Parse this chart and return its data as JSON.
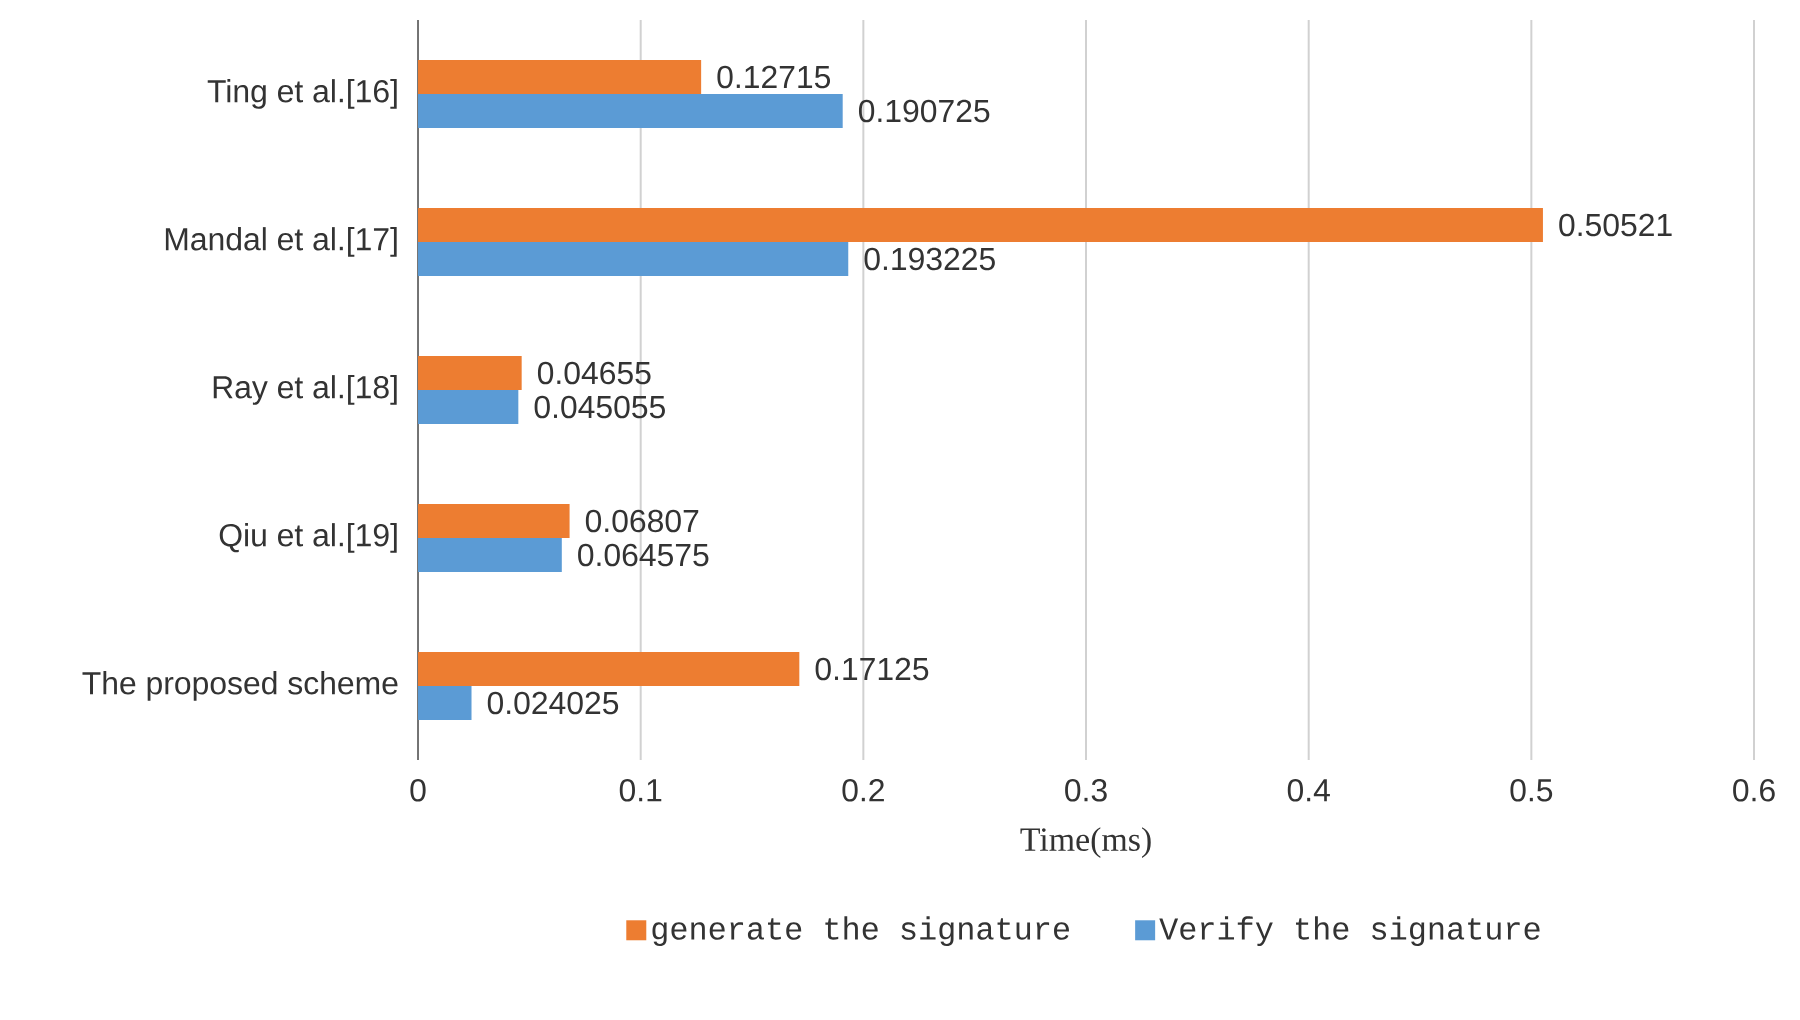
{
  "chart_data": {
    "type": "bar",
    "orientation": "horizontal",
    "xlabel": "Time(ms)",
    "categories": [
      "Ting et al.[16]",
      "Mandal et al.[17]",
      "Ray et al.[18]",
      "Qiu et al.[19]",
      "The proposed scheme"
    ],
    "series": [
      {
        "name": "generate the signature",
        "color": "#ed7d31",
        "values": [
          0.12715,
          0.50521,
          0.04655,
          0.06807,
          0.17125
        ]
      },
      {
        "name": "Verify the signature",
        "color": "#5b9bd5",
        "values": [
          0.190725,
          0.193225,
          0.045055,
          0.064575,
          0.024025
        ]
      }
    ],
    "xlim": [
      0,
      0.6
    ],
    "xticks": [
      0,
      0.1,
      0.2,
      0.3,
      0.4,
      0.5,
      0.6
    ],
    "grid": "x",
    "legend": "bottom",
    "data_labels": true
  }
}
